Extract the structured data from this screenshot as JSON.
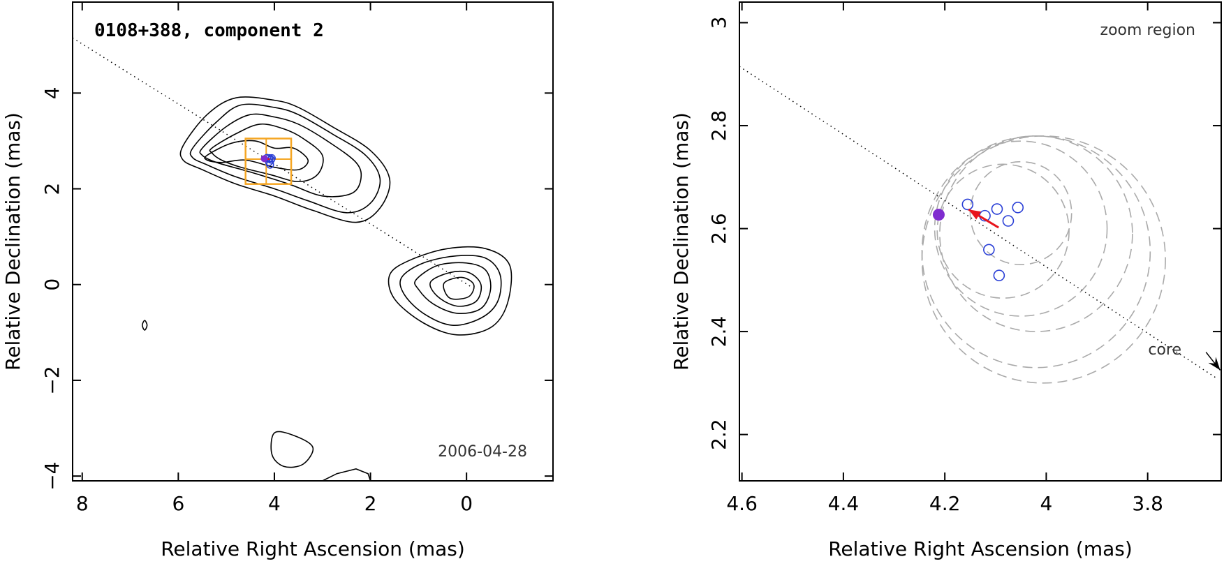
{
  "chart_data": [
    {
      "type": "scatter",
      "title": "0108+388, component 2",
      "date": "2006-04-28",
      "xlabel": "Relative Right Ascension (mas)",
      "ylabel": "Relative Declination (mas)",
      "xlim": [
        8.2,
        -1.8
      ],
      "ylim": [
        -4.1,
        5.9
      ],
      "xticks": [
        8,
        6,
        4,
        2,
        0
      ],
      "yticks": [
        4,
        2,
        0,
        -2,
        -4
      ],
      "xtick_labels": [
        "8",
        "6",
        "4",
        "2",
        "0"
      ],
      "ytick_labels": [
        "4",
        "2",
        "0",
        "−2",
        "−4"
      ],
      "contours": [
        {
          "name": "component-2-level-1",
          "points": [
            [
              5.9,
              2.9
            ],
            [
              5.4,
              3.55
            ],
            [
              4.8,
              3.9
            ],
            [
              4.0,
              3.85
            ],
            [
              3.5,
              3.7
            ],
            [
              2.8,
              3.3
            ],
            [
              2.0,
              2.8
            ],
            [
              1.6,
              2.2
            ],
            [
              1.8,
              1.6
            ],
            [
              2.3,
              1.3
            ],
            [
              3.2,
              1.55
            ],
            [
              4.0,
              1.85
            ],
            [
              4.8,
              2.1
            ],
            [
              5.5,
              2.4
            ],
            [
              5.9,
              2.6
            ]
          ]
        },
        {
          "name": "component-2-level-2",
          "points": [
            [
              5.7,
              2.85
            ],
            [
              5.2,
              3.4
            ],
            [
              4.7,
              3.75
            ],
            [
              4.0,
              3.7
            ],
            [
              3.5,
              3.55
            ],
            [
              2.8,
              3.15
            ],
            [
              2.1,
              2.7
            ],
            [
              1.8,
              2.2
            ],
            [
              2.0,
              1.7
            ],
            [
              2.5,
              1.5
            ],
            [
              3.3,
              1.75
            ],
            [
              4.0,
              2.0
            ],
            [
              4.8,
              2.25
            ],
            [
              5.4,
              2.5
            ],
            [
              5.7,
              2.65
            ]
          ]
        },
        {
          "name": "component-2-level-3",
          "points": [
            [
              5.5,
              2.85
            ],
            [
              5.0,
              3.3
            ],
            [
              4.5,
              3.55
            ],
            [
              4.0,
              3.5
            ],
            [
              3.5,
              3.35
            ],
            [
              2.9,
              3.0
            ],
            [
              2.3,
              2.55
            ],
            [
              2.2,
              2.2
            ],
            [
              2.4,
              1.9
            ],
            [
              3.0,
              1.85
            ],
            [
              3.7,
              2.1
            ],
            [
              4.5,
              2.35
            ],
            [
              5.2,
              2.55
            ],
            [
              5.5,
              2.7
            ]
          ]
        },
        {
          "name": "component-2-level-4",
          "points": [
            [
              5.3,
              2.85
            ],
            [
              4.8,
              3.15
            ],
            [
              4.3,
              3.35
            ],
            [
              3.8,
              3.25
            ],
            [
              3.4,
              3.05
            ],
            [
              3.0,
              2.7
            ],
            [
              3.1,
              2.3
            ],
            [
              3.5,
              2.15
            ],
            [
              4.1,
              2.3
            ],
            [
              4.7,
              2.45
            ],
            [
              5.1,
              2.6
            ],
            [
              5.3,
              2.75
            ]
          ]
        },
        {
          "name": "component-2-level-5",
          "points": [
            [
              5.4,
              2.7
            ],
            [
              4.9,
              2.95
            ],
            [
              4.4,
              3.0
            ],
            [
              4.0,
              2.85
            ],
            [
              3.6,
              2.85
            ],
            [
              3.3,
              2.6
            ],
            [
              3.5,
              2.4
            ],
            [
              4.0,
              2.45
            ],
            [
              4.6,
              2.6
            ],
            [
              5.1,
              2.55
            ],
            [
              5.4,
              2.6
            ]
          ]
        },
        {
          "name": "core-level-1",
          "points": [
            [
              1.6,
              0.2
            ],
            [
              1.2,
              0.5
            ],
            [
              0.4,
              0.75
            ],
            [
              -0.4,
              0.75
            ],
            [
              -0.9,
              0.4
            ],
            [
              -0.85,
              -0.4
            ],
            [
              -0.5,
              -0.9
            ],
            [
              0.2,
              -1.05
            ],
            [
              0.9,
              -0.8
            ],
            [
              1.5,
              -0.3
            ]
          ]
        },
        {
          "name": "core-level-2",
          "points": [
            [
              1.35,
              0.15
            ],
            [
              0.9,
              0.45
            ],
            [
              0.2,
              0.6
            ],
            [
              -0.4,
              0.55
            ],
            [
              -0.7,
              0.2
            ],
            [
              -0.65,
              -0.35
            ],
            [
              -0.3,
              -0.7
            ],
            [
              0.3,
              -0.85
            ],
            [
              0.9,
              -0.6
            ],
            [
              1.3,
              -0.2
            ]
          ]
        },
        {
          "name": "core-level-3",
          "points": [
            [
              1.05,
              0.1
            ],
            [
              0.6,
              0.4
            ],
            [
              0.0,
              0.45
            ],
            [
              -0.4,
              0.3
            ],
            [
              -0.5,
              -0.1
            ],
            [
              -0.3,
              -0.5
            ],
            [
              0.2,
              -0.6
            ],
            [
              0.7,
              -0.4
            ],
            [
              1.0,
              -0.1
            ]
          ]
        },
        {
          "name": "core-level-4",
          "points": [
            [
              0.75,
              0.05
            ],
            [
              0.35,
              0.25
            ],
            [
              -0.05,
              0.25
            ],
            [
              -0.3,
              0.0
            ],
            [
              -0.2,
              -0.35
            ],
            [
              0.2,
              -0.45
            ],
            [
              0.6,
              -0.25
            ]
          ]
        },
        {
          "name": "core-level-5",
          "points": [
            [
              0.45,
              0.05
            ],
            [
              0.1,
              0.15
            ],
            [
              -0.15,
              0.0
            ],
            [
              -0.05,
              -0.25
            ],
            [
              0.3,
              -0.3
            ],
            [
              0.45,
              -0.15
            ]
          ]
        },
        {
          "name": "noise-blob-small",
          "points": [
            [
              6.7,
              -0.75
            ],
            [
              6.65,
              -0.85
            ],
            [
              6.7,
              -0.95
            ],
            [
              6.75,
              -0.85
            ]
          ]
        },
        {
          "name": "noise-blob-bottom",
          "points": [
            [
              4.0,
              -3.1
            ],
            [
              3.6,
              -3.15
            ],
            [
              3.2,
              -3.4
            ],
            [
              3.4,
              -3.75
            ],
            [
              3.8,
              -3.8
            ],
            [
              4.05,
              -3.55
            ]
          ]
        },
        {
          "name": "noise-arc-bottom",
          "points": [
            [
              3.0,
              -4.1
            ],
            [
              2.7,
              -3.95
            ],
            [
              2.3,
              -3.85
            ],
            [
              2.05,
              -3.95
            ],
            [
              2.0,
              -4.1
            ]
          ]
        }
      ],
      "jet_axis_line": {
        "from": [
          8.2,
          5.15
        ],
        "to": [
          -0.1,
          -0.05
        ]
      },
      "zoom_box": {
        "x_range": [
          4.6,
          3.65
        ],
        "y_range": [
          2.1,
          3.05
        ],
        "x_mid": 4.17,
        "y_mid": 2.62,
        "color": "#f5a623"
      },
      "component_marker": {
        "x": 4.21,
        "y": 2.63,
        "color": "#7f2ccf"
      },
      "open_circles": [
        [
          4.155,
          2.645
        ],
        [
          4.12,
          2.625
        ],
        [
          4.1,
          2.64
        ],
        [
          4.07,
          2.61
        ],
        [
          4.055,
          2.64
        ],
        [
          4.11,
          2.56
        ],
        [
          4.09,
          2.505
        ]
      ]
    },
    {
      "type": "scatter",
      "annotation": "zoom region",
      "core_label": "core",
      "xlabel": "Relative Right Ascension (mas)",
      "ylabel": "Relative Declination (mas)",
      "xlim": [
        4.605,
        3.655
      ],
      "ylim": [
        2.11,
        3.04
      ],
      "xticks": [
        4.6,
        4.4,
        4.2,
        4.0,
        3.8
      ],
      "yticks": [
        3.0,
        2.8,
        2.6,
        2.4,
        2.2
      ],
      "xtick_labels": [
        "4.6",
        "4.4",
        "4.2",
        "4",
        "3.8"
      ],
      "ytick_labels": [
        "3",
        "2.8",
        "2.6",
        "2.4",
        "2.2"
      ],
      "component_marker": {
        "x": 4.212,
        "y": 2.627,
        "color": "#7f2ccf"
      },
      "open_circles": [
        {
          "x": 4.155,
          "y": 2.647
        },
        {
          "x": 4.121,
          "y": 2.625
        },
        {
          "x": 4.097,
          "y": 2.638
        },
        {
          "x": 4.075,
          "y": 2.615
        },
        {
          "x": 4.056,
          "y": 2.641
        },
        {
          "x": 4.113,
          "y": 2.559
        },
        {
          "x": 4.093,
          "y": 2.509
        }
      ],
      "circle_color": "#2a3fd6",
      "error_circles": [
        {
          "cx": 4.05,
          "cy": 2.63,
          "r": 0.1
        },
        {
          "cx": 4.085,
          "cy": 2.595,
          "r": 0.13
        },
        {
          "cx": 4.05,
          "cy": 2.6,
          "r": 0.17
        },
        {
          "cx": 4.02,
          "cy": 2.59,
          "r": 0.19
        },
        {
          "cx": 4.02,
          "cy": 2.555,
          "r": 0.225
        },
        {
          "cx": 4.005,
          "cy": 2.54,
          "r": 0.24
        }
      ],
      "jet_axis_line": {
        "from": [
          4.605,
          2.915
        ],
        "to": [
          3.665,
          2.31
        ]
      },
      "motion_arrow": {
        "from": [
          4.094,
          2.602
        ],
        "to": [
          4.153,
          2.637
        ],
        "color": "#e8141c"
      },
      "core_arrow": {
        "from": [
          3.685,
          2.36
        ],
        "to": [
          3.657,
          2.325
        ]
      }
    }
  ]
}
